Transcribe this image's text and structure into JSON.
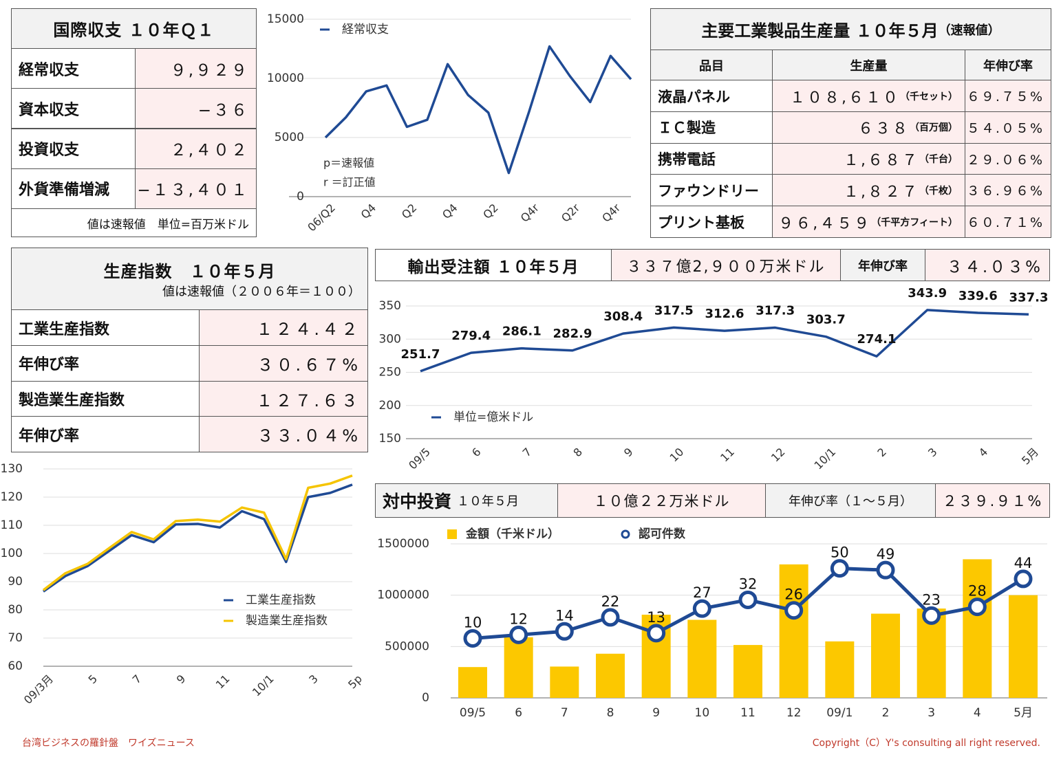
{
  "balance": {
    "title": "国際収支 １０年Ｑ１",
    "rows": [
      {
        "label": "経常収支",
        "value": "９,９２９"
      },
      {
        "label": "資本収支",
        "value": "−３６"
      },
      {
        "label": "投資収支",
        "value": "２,４０２"
      },
      {
        "label": "外貨準備増減",
        "value": "−１３,４０１"
      }
    ],
    "note": "値は速報値　単位=百万米ドル"
  },
  "production": {
    "title": "主要工業製品生産量 １０年５月",
    "title_note": "（速報値）",
    "headers": [
      "品目",
      "生産量",
      "年伸び率"
    ],
    "rows": [
      {
        "item": "液晶パネル",
        "amount": "１０８,６１０",
        "unit": "（千セット）",
        "growth": "６９.７５%"
      },
      {
        "item": "ＩＣ製造",
        "amount": "６３８",
        "unit": "（百万個）",
        "growth": "５４.０５%"
      },
      {
        "item": "携帯電話",
        "amount": "１,６８７",
        "unit": "（千台）",
        "growth": "２９.０６%"
      },
      {
        "item": "ファウンドリー",
        "amount": "１,８２７",
        "unit": "（千枚）",
        "growth": "３６.９６%"
      },
      {
        "item": "プリント基板",
        "amount": "９６,４５９",
        "unit": "（千平方フィート）",
        "growth": "６０.７１%"
      }
    ]
  },
  "index_table": {
    "title": "生産指数　１０年５月",
    "note": "値は速報値（２００６年＝１００）",
    "rows": [
      {
        "label": "工業生産指数",
        "value": "１２４.４２"
      },
      {
        "label": "年伸び率",
        "value": "３０.６７%"
      },
      {
        "label": "製造業生産指数",
        "value": "１２７.６３"
      },
      {
        "label": "年伸び率",
        "value": "３３.０４%"
      }
    ]
  },
  "export_header": {
    "title": "輸出受注額 １０年５月",
    "value": "３３７億2,９００万米ドル",
    "growth_label": "年伸び率",
    "growth": "３４.０３%"
  },
  "investment_header": {
    "title": "対中投資",
    "title_sub": "１０年５月",
    "value": "１０億２２万米ドル",
    "growth_label": "年伸び率（１～５月）",
    "growth": "２３９.９１%"
  },
  "footer": {
    "left": "台湾ビジネスの羅針盤　ワイズニュース",
    "right": "Copyright（C）Y's consulting all right reserved."
  },
  "chart_data": [
    {
      "type": "line",
      "categories": [
        "06/Q2",
        null,
        "Q4",
        null,
        "Q2",
        null,
        "Q4",
        null,
        "Q2",
        null,
        "Q4r",
        null,
        "Q2r",
        null,
        "Q4r",
        null
      ],
      "series": [
        {
          "name": "経常収支",
          "color": "#1f4a94",
          "values": [
            5000,
            6700,
            8900,
            9400,
            5900,
            6500,
            11200,
            8600,
            7100,
            2000,
            7200,
            12700,
            10200,
            8000,
            11900,
            9929
          ]
        }
      ],
      "ylim": [
        0,
        15000
      ],
      "yticks": [
        0,
        5000,
        10000,
        15000
      ],
      "grid": true,
      "annotations": [
        "p＝速報値",
        "r ＝訂正値"
      ]
    },
    {
      "type": "line",
      "categories": [
        "09/3月",
        null,
        "5",
        null,
        "7",
        null,
        "9",
        null,
        "11",
        null,
        "10/1",
        null,
        "3",
        null,
        "5p"
      ],
      "series": [
        {
          "name": "工業生産指数",
          "color": "#1f4a94",
          "values": [
            86.5,
            92,
            95.5,
            101,
            106.5,
            104,
            110.3,
            110.5,
            109.2,
            115,
            112.2,
            97,
            120,
            121.5,
            124.42
          ]
        },
        {
          "name": "製造業生産指数",
          "color": "#f5c400",
          "values": [
            87,
            93,
            96.3,
            102,
            107.6,
            105,
            111.5,
            112,
            111.3,
            116.3,
            114.5,
            98,
            123.3,
            124.8,
            127.63
          ]
        }
      ],
      "ylim": [
        60,
        130
      ],
      "yticks": [
        60,
        70,
        80,
        90,
        100,
        110,
        120,
        130
      ],
      "grid": true
    },
    {
      "type": "line",
      "categories": [
        "09/5",
        "6",
        "7",
        "8",
        "9",
        "10",
        "11",
        "12",
        "10/1",
        "2",
        "3",
        "4",
        "5月"
      ],
      "series": [
        {
          "name": "単位=億米ドル",
          "color": "#1f4a94",
          "values": [
            251.7,
            279.4,
            286.1,
            282.9,
            308.4,
            317.5,
            312.6,
            317.3,
            303.7,
            274.1,
            343.9,
            339.6,
            337.3
          ]
        }
      ],
      "ylim": [
        150,
        350
      ],
      "yticks": [
        150,
        200,
        250,
        300,
        350
      ],
      "grid": true,
      "data_labels": true
    },
    {
      "type": "bar",
      "categories": [
        "09/5",
        "6",
        "7",
        "8",
        "9",
        "10",
        "11",
        "12",
        "09/1",
        "2",
        "3",
        "4",
        "5月"
      ],
      "series": [
        {
          "name": "金額（千米ドル）",
          "color": "#fcc800",
          "values": [
            300000,
            590000,
            305000,
            430000,
            810000,
            760000,
            515000,
            1300000,
            550000,
            820000,
            870000,
            1350000,
            1000220
          ]
        },
        {
          "name": "認可件数",
          "type": "line",
          "axis": "y2",
          "color": "#1f4a94",
          "values": [
            10,
            12,
            14,
            22,
            13,
            27,
            32,
            26,
            50,
            49,
            23,
            28,
            44
          ]
        }
      ],
      "ylim": [
        0,
        1500000
      ],
      "yticks": [
        0,
        500000,
        1000000,
        1500000
      ],
      "y2lim": [
        -24,
        64
      ],
      "grid": true,
      "data_labels": true
    }
  ]
}
